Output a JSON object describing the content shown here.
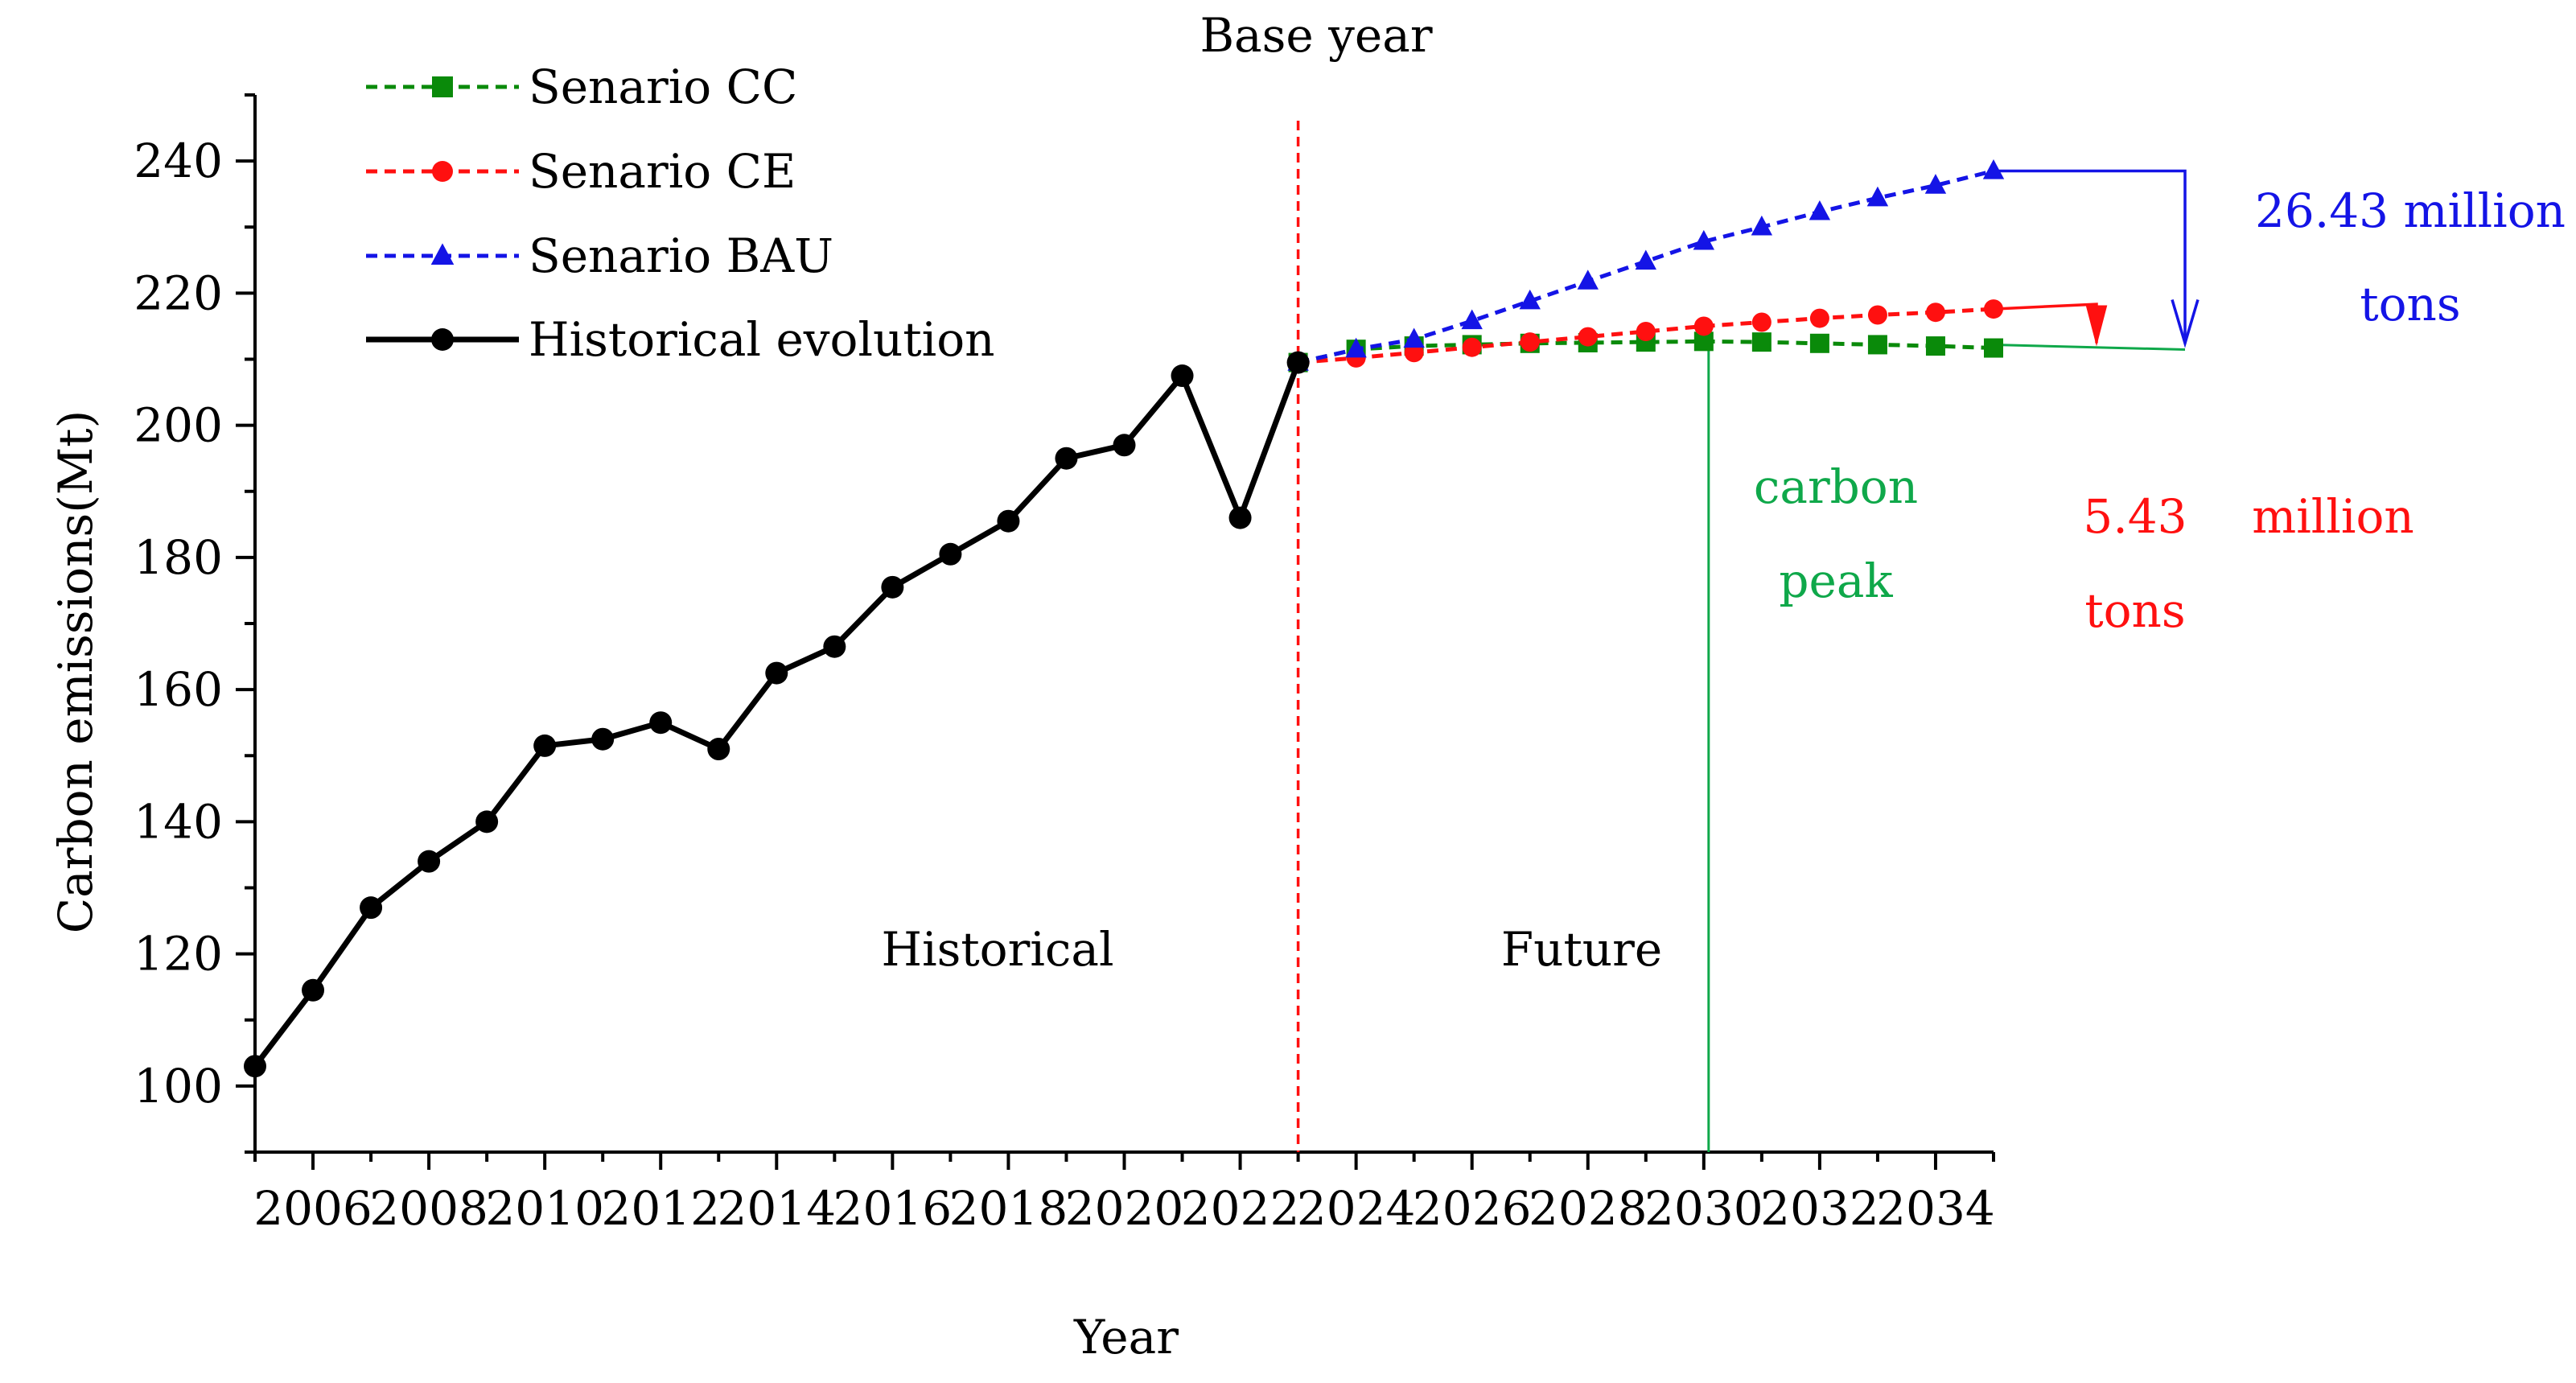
{
  "chart_data": {
    "type": "line",
    "title": "Base year",
    "xlabel": "Year",
    "ylabel": "Carbon emissions(Mt)",
    "xlim": [
      2005,
      2035
    ],
    "ylim": [
      90,
      250
    ],
    "x_ticks": [
      2006,
      2008,
      2010,
      2012,
      2014,
      2016,
      2018,
      2020,
      2022,
      2024,
      2026,
      2028,
      2030,
      2032,
      2034
    ],
    "y_ticks": [
      100,
      120,
      140,
      160,
      180,
      200,
      220,
      240
    ],
    "legend_position": "top-left",
    "series": [
      {
        "name": "Senario CC",
        "color": "#0a8a0a",
        "marker": "square",
        "style": "dashed",
        "x": [
          2023,
          2024,
          2025,
          2026,
          2027,
          2028,
          2029,
          2030,
          2031,
          2032,
          2033,
          2034,
          2035
        ],
        "values": [
          209.5,
          211.5,
          212.0,
          212.2,
          212.4,
          212.5,
          212.6,
          212.7,
          212.6,
          212.4,
          212.2,
          212.0,
          211.7
        ]
      },
      {
        "name": "Senario CE",
        "color": "#ff1010",
        "marker": "circle",
        "style": "dashed",
        "x": [
          2023,
          2024,
          2025,
          2026,
          2027,
          2028,
          2029,
          2030,
          2031,
          2032,
          2033,
          2034,
          2035
        ],
        "values": [
          209.5,
          210.2,
          211.0,
          211.8,
          212.6,
          213.4,
          214.2,
          215.0,
          215.6,
          216.2,
          216.7,
          217.1,
          217.6
        ]
      },
      {
        "name": "Senario BAU",
        "color": "#1414e6",
        "marker": "triangle",
        "style": "dashed",
        "x": [
          2023,
          2024,
          2025,
          2026,
          2027,
          2028,
          2029,
          2030,
          2031,
          2032,
          2033,
          2034,
          2035
        ],
        "values": [
          209.5,
          211.5,
          213.0,
          215.8,
          218.8,
          221.8,
          224.8,
          227.8,
          230.0,
          232.3,
          234.4,
          236.3,
          238.5
        ]
      },
      {
        "name": "Historical evolution",
        "color": "#000000",
        "marker": "circle",
        "style": "solid",
        "x": [
          2005,
          2006,
          2007,
          2008,
          2009,
          2010,
          2011,
          2012,
          2013,
          2014,
          2015,
          2016,
          2017,
          2018,
          2019,
          2020,
          2021,
          2022,
          2023
        ],
        "values": [
          103,
          114.5,
          127,
          134,
          140,
          151.5,
          152.5,
          155,
          151,
          162.5,
          166.5,
          175.5,
          180.5,
          185.5,
          195,
          197,
          207.5,
          186,
          209.5
        ]
      }
    ],
    "base_year": 2023,
    "peak_year": 2030,
    "annotations": {
      "base_year": "Base year",
      "historical": "Historical",
      "future": "Future",
      "carbon_peak_line1": "carbon",
      "carbon_peak_line2": "peak",
      "bau_gap_line1": "26.43 million",
      "bau_gap_line2": "tons",
      "ce_gap_value": "5.43",
      "ce_gap_unit": "million",
      "ce_gap_line2": "tons"
    },
    "annotation_colors": {
      "base_year_line": "#ff1010",
      "carbon_peak": "#0fa84a",
      "bau_gap": "#1414e6",
      "ce_gap": "#ff1010"
    }
  }
}
